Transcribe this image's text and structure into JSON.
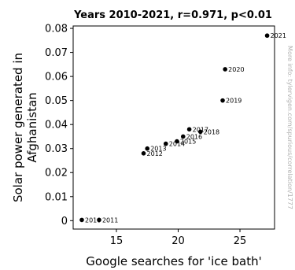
{
  "chart_data": {
    "type": "scatter",
    "title": "Years 2010-2021, r=0.971, p<0.01",
    "xlabel": "Google searches for 'ice bath'",
    "ylabel_lines": [
      "Solar power generated in",
      "Afghanistan"
    ],
    "xlim": [
      11.5,
      27.8
    ],
    "ylim": [
      -0.0035,
      0.081
    ],
    "xticks": [
      15,
      20,
      25
    ],
    "yticks": [
      0,
      0.01,
      0.02,
      0.03,
      0.04,
      0.05,
      0.06,
      0.07,
      0.08
    ],
    "yticks_labels": [
      "0",
      "0.01",
      "0.02",
      "0.03",
      "0.04",
      "0.05",
      "0.06",
      "0.07",
      "0.08"
    ],
    "grid": false,
    "watermark": "More info: tylervigen.com/spurious/correlation/1777",
    "points": [
      {
        "label": "2010",
        "x": 12.2,
        "y": 0.0003
      },
      {
        "label": "2011",
        "x": 13.6,
        "y": 0.0003
      },
      {
        "label": "2012",
        "x": 17.2,
        "y": 0.028
      },
      {
        "label": "2013",
        "x": 17.5,
        "y": 0.03
      },
      {
        "label": "2014",
        "x": 19.0,
        "y": 0.032
      },
      {
        "label": "2015",
        "x": 19.9,
        "y": 0.033
      },
      {
        "label": "2016",
        "x": 20.4,
        "y": 0.035
      },
      {
        "label": "2017",
        "x": 20.9,
        "y": 0.038
      },
      {
        "label": "2018",
        "x": 21.8,
        "y": 0.037
      },
      {
        "label": "2019",
        "x": 23.6,
        "y": 0.05
      },
      {
        "label": "2020",
        "x": 23.8,
        "y": 0.063
      },
      {
        "label": "2021",
        "x": 27.2,
        "y": 0.077
      }
    ]
  }
}
